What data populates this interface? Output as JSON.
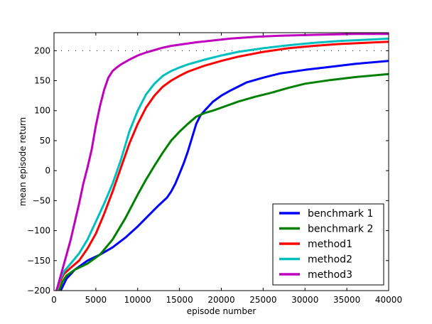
{
  "chart_data": {
    "type": "line",
    "title": "",
    "xlabel": "episode number",
    "ylabel": "mean episode return",
    "xlim": [
      0,
      40000
    ],
    "ylim": [
      -200,
      230
    ],
    "xticks": [
      0,
      5000,
      10000,
      15000,
      20000,
      25000,
      30000,
      35000,
      40000
    ],
    "yticks": [
      -200,
      -150,
      -100,
      -50,
      0,
      50,
      100,
      150,
      200
    ],
    "xtick_labels": [
      "0",
      "5000",
      "10000",
      "15000",
      "20000",
      "25000",
      "30000",
      "35000",
      "40000"
    ],
    "ytick_labels": [
      "−200",
      "−150",
      "−100",
      "−50",
      "0",
      "50",
      "100",
      "150",
      "200"
    ],
    "reference_line": {
      "y": 200,
      "style": "dotted"
    },
    "grid": false,
    "legend_position": "bottom-right",
    "series": [
      {
        "name": "benchmark 1",
        "color": "#0000ff",
        "x": [
          800,
          1500,
          2500,
          4000,
          5500,
          7000,
          8500,
          10000,
          11500,
          12500,
          13500,
          14000,
          14500,
          15000,
          15500,
          16000,
          16500,
          17000,
          17500,
          18000,
          19000,
          20000,
          21000,
          22000,
          23000,
          25000,
          27000,
          30000,
          33000,
          36000,
          40000
        ],
        "y": [
          -200,
          -180,
          -165,
          -150,
          -140,
          -128,
          -112,
          -93,
          -72,
          -58,
          -45,
          -35,
          -22,
          -5,
          12,
          32,
          55,
          78,
          92,
          100,
          115,
          125,
          133,
          140,
          147,
          155,
          162,
          168,
          173,
          178,
          183
        ]
      },
      {
        "name": "benchmark 2",
        "color": "#008000",
        "x": [
          600,
          1000,
          1500,
          2500,
          4000,
          5500,
          7000,
          8500,
          10000,
          11000,
          12000,
          13000,
          14000,
          15000,
          16000,
          17000,
          18000,
          19000,
          20000,
          22000,
          24000,
          26000,
          28000,
          30000,
          33000,
          36000,
          40000
        ],
        "y": [
          -200,
          -185,
          -175,
          -165,
          -155,
          -140,
          -115,
          -80,
          -40,
          -15,
          8,
          30,
          50,
          65,
          78,
          90,
          96,
          100,
          105,
          115,
          123,
          130,
          138,
          145,
          151,
          156,
          161
        ]
      },
      {
        "name": "method1",
        "color": "#ff0000",
        "x": [
          300,
          700,
          1200,
          2000,
          3000,
          4000,
          5000,
          6000,
          7000,
          8000,
          9000,
          10000,
          11000,
          12000,
          13000,
          14000,
          15000,
          16000,
          18000,
          20000,
          22000,
          25000,
          28000,
          31000,
          34000,
          37000,
          40000
        ],
        "y": [
          -200,
          -185,
          -172,
          -162,
          -150,
          -130,
          -105,
          -72,
          -35,
          5,
          45,
          78,
          105,
          125,
          140,
          150,
          158,
          165,
          175,
          183,
          190,
          198,
          204,
          208,
          211,
          213,
          215
        ]
      },
      {
        "name": "method2",
        "color": "#00bfbf",
        "x": [
          300,
          700,
          1200,
          2000,
          3000,
          4000,
          5000,
          6000,
          7000,
          8000,
          9000,
          10000,
          11000,
          12000,
          13000,
          14000,
          15000,
          16000,
          18000,
          20000,
          22000,
          25000,
          28000,
          31000,
          34000,
          37000,
          40000
        ],
        "y": [
          -200,
          -182,
          -168,
          -155,
          -138,
          -115,
          -85,
          -55,
          -22,
          18,
          65,
          100,
          127,
          145,
          158,
          166,
          172,
          177,
          185,
          192,
          198,
          204,
          209,
          213,
          216,
          218,
          220
        ]
      },
      {
        "name": "method3",
        "color": "#bf00bf",
        "x": [
          300,
          600,
          1000,
          1500,
          2000,
          2500,
          3000,
          3500,
          4000,
          4500,
          5000,
          5500,
          6000,
          6500,
          7000,
          7500,
          8000,
          9000,
          10000,
          11000,
          12000,
          13000,
          14000,
          15000,
          17000,
          19000,
          21000,
          24000,
          27000,
          30000,
          33000,
          36000,
          40000
        ],
        "y": [
          -200,
          -185,
          -165,
          -140,
          -115,
          -85,
          -55,
          -22,
          5,
          35,
          75,
          108,
          135,
          155,
          166,
          172,
          177,
          185,
          192,
          197,
          201,
          205,
          208,
          210,
          214,
          217,
          220,
          223,
          225,
          226,
          227,
          228,
          228
        ]
      }
    ]
  }
}
